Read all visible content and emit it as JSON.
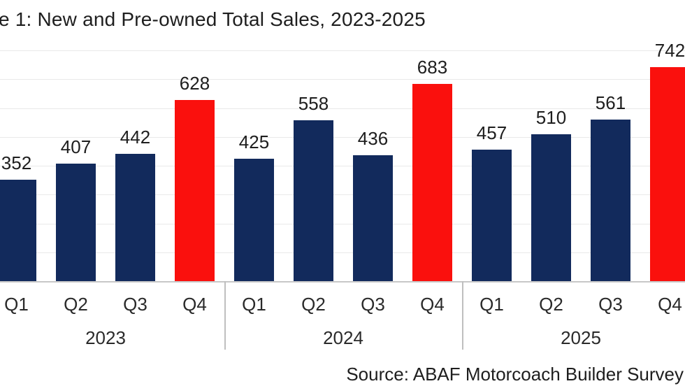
{
  "title": "e 1: New and Pre-owned Total Sales, 2023-2025",
  "source": "Source: ABAF Motorcoach Builder Survey",
  "colors": {
    "bar_primary": "#122a5c",
    "bar_highlight": "#fa100d",
    "gridline": "#e9e9e9",
    "axis": "#c7c7c7",
    "text": "#1e1e1e"
  },
  "chart_data": {
    "type": "bar",
    "title": "e 1: New and Pre-owned Total Sales, 2023-2025",
    "categories": [
      "Q1",
      "Q2",
      "Q3",
      "Q4"
    ],
    "groups": [
      {
        "year": "2023",
        "values": [
          352,
          407,
          442,
          628
        ]
      },
      {
        "year": "2024",
        "values": [
          425,
          558,
          436,
          683
        ]
      },
      {
        "year": "2025",
        "values": [
          457,
          510,
          561,
          742
        ]
      }
    ],
    "highlight_category": "Q4",
    "highlight_color": "#fa100d",
    "primary_color": "#122a5c",
    "data_labels": true,
    "grid": true,
    "legend": false,
    "xlabel": "",
    "ylabel": "",
    "ylim": [
      0,
      800
    ],
    "gridline_interval": 100,
    "source": "Source: ABAF Motorcoach Builder Survey"
  }
}
